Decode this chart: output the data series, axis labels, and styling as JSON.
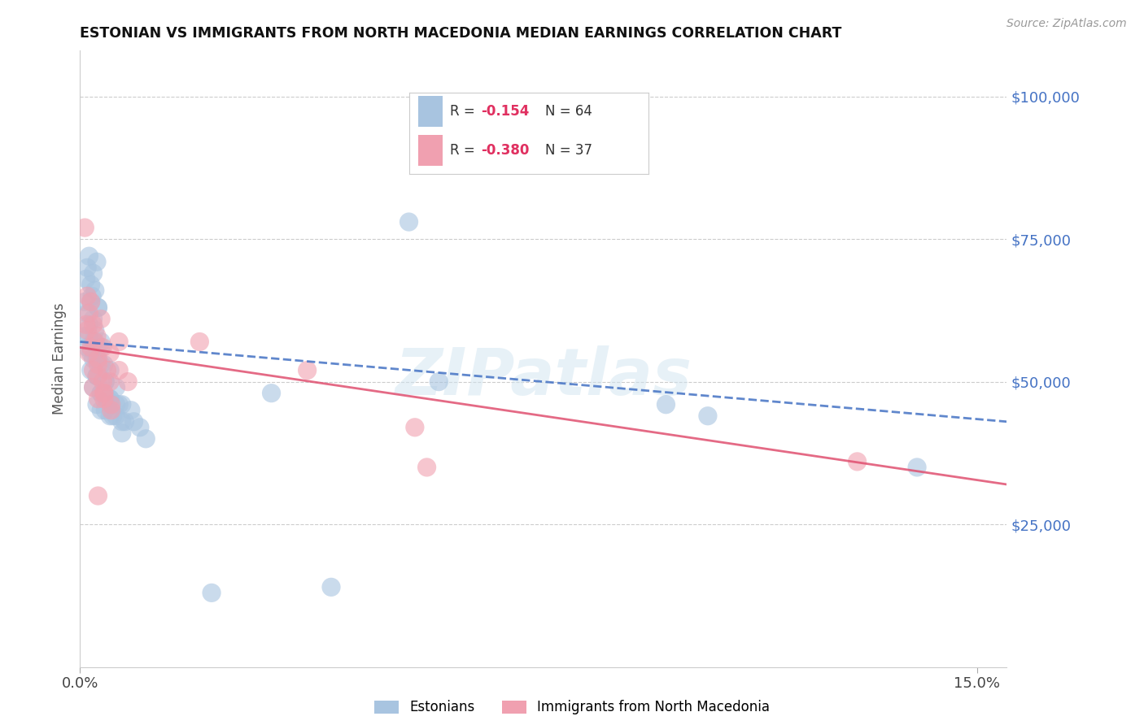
{
  "title": "ESTONIAN VS IMMIGRANTS FROM NORTH MACEDONIA MEDIAN EARNINGS CORRELATION CHART",
  "source": "Source: ZipAtlas.com",
  "ylabel": "Median Earnings",
  "right_yticklabels": [
    "$25,000",
    "$50,000",
    "$75,000",
    "$100,000"
  ],
  "right_ytick_vals": [
    25000,
    50000,
    75000,
    100000
  ],
  "legend1_label": "Estonians",
  "legend2_label": "Immigrants from North Macedonia",
  "R1": "-0.154",
  "N1": "64",
  "R2": "-0.380",
  "N2": "37",
  "blue_color": "#a8c4e0",
  "pink_color": "#f0a0b0",
  "line_blue": "#4472c4",
  "line_pink": "#e05070",
  "right_tick_color": "#4472c4",
  "watermark": "ZIPatlas",
  "xlim": [
    0,
    0.155
  ],
  "ylim": [
    0,
    108000
  ],
  "blue_x": [
    0.0008,
    0.001,
    0.0012,
    0.0015,
    0.0018,
    0.002,
    0.0022,
    0.0025,
    0.0028,
    0.003,
    0.0008,
    0.0012,
    0.0015,
    0.0018,
    0.0022,
    0.0025,
    0.003,
    0.0035,
    0.0012,
    0.0015,
    0.0018,
    0.0022,
    0.0028,
    0.0035,
    0.004,
    0.0018,
    0.0022,
    0.0028,
    0.0035,
    0.0042,
    0.005,
    0.0022,
    0.0028,
    0.0035,
    0.0042,
    0.005,
    0.006,
    0.0028,
    0.0035,
    0.0042,
    0.005,
    0.006,
    0.007,
    0.0035,
    0.0045,
    0.0055,
    0.0065,
    0.0075,
    0.005,
    0.006,
    0.007,
    0.0085,
    0.01,
    0.032,
    0.007,
    0.009,
    0.011,
    0.06,
    0.098,
    0.105,
    0.022,
    0.042,
    0.14,
    0.055
  ],
  "blue_y": [
    64000,
    68000,
    70000,
    72000,
    67000,
    65000,
    69000,
    66000,
    71000,
    63000,
    58000,
    62000,
    60000,
    64000,
    61000,
    59000,
    63000,
    57000,
    56000,
    58000,
    55000,
    57000,
    54000,
    56000,
    53000,
    52000,
    54000,
    51000,
    53000,
    50000,
    52000,
    49000,
    51000,
    48000,
    50000,
    47000,
    49000,
    46000,
    48000,
    45000,
    47000,
    44000,
    46000,
    45000,
    47000,
    44000,
    46000,
    43000,
    44000,
    46000,
    43000,
    45000,
    42000,
    48000,
    41000,
    43000,
    40000,
    50000,
    46000,
    44000,
    13000,
    14000,
    35000,
    78000
  ],
  "pink_x": [
    0.0008,
    0.0012,
    0.0015,
    0.0018,
    0.0022,
    0.0028,
    0.0035,
    0.0012,
    0.0018,
    0.0025,
    0.003,
    0.0038,
    0.0015,
    0.0022,
    0.003,
    0.0038,
    0.0045,
    0.0022,
    0.003,
    0.004,
    0.005,
    0.003,
    0.004,
    0.0052,
    0.004,
    0.0052,
    0.0065,
    0.005,
    0.0065,
    0.008,
    0.02,
    0.038,
    0.056,
    0.001,
    0.003,
    0.13,
    0.058
  ],
  "pink_y": [
    77000,
    65000,
    62000,
    64000,
    60000,
    58000,
    61000,
    59000,
    56000,
    57000,
    54000,
    56000,
    55000,
    52000,
    53000,
    50000,
    52000,
    49000,
    51000,
    48000,
    50000,
    47000,
    48000,
    46000,
    47000,
    45000,
    57000,
    55000,
    52000,
    50000,
    57000,
    52000,
    42000,
    60000,
    30000,
    36000,
    35000
  ]
}
